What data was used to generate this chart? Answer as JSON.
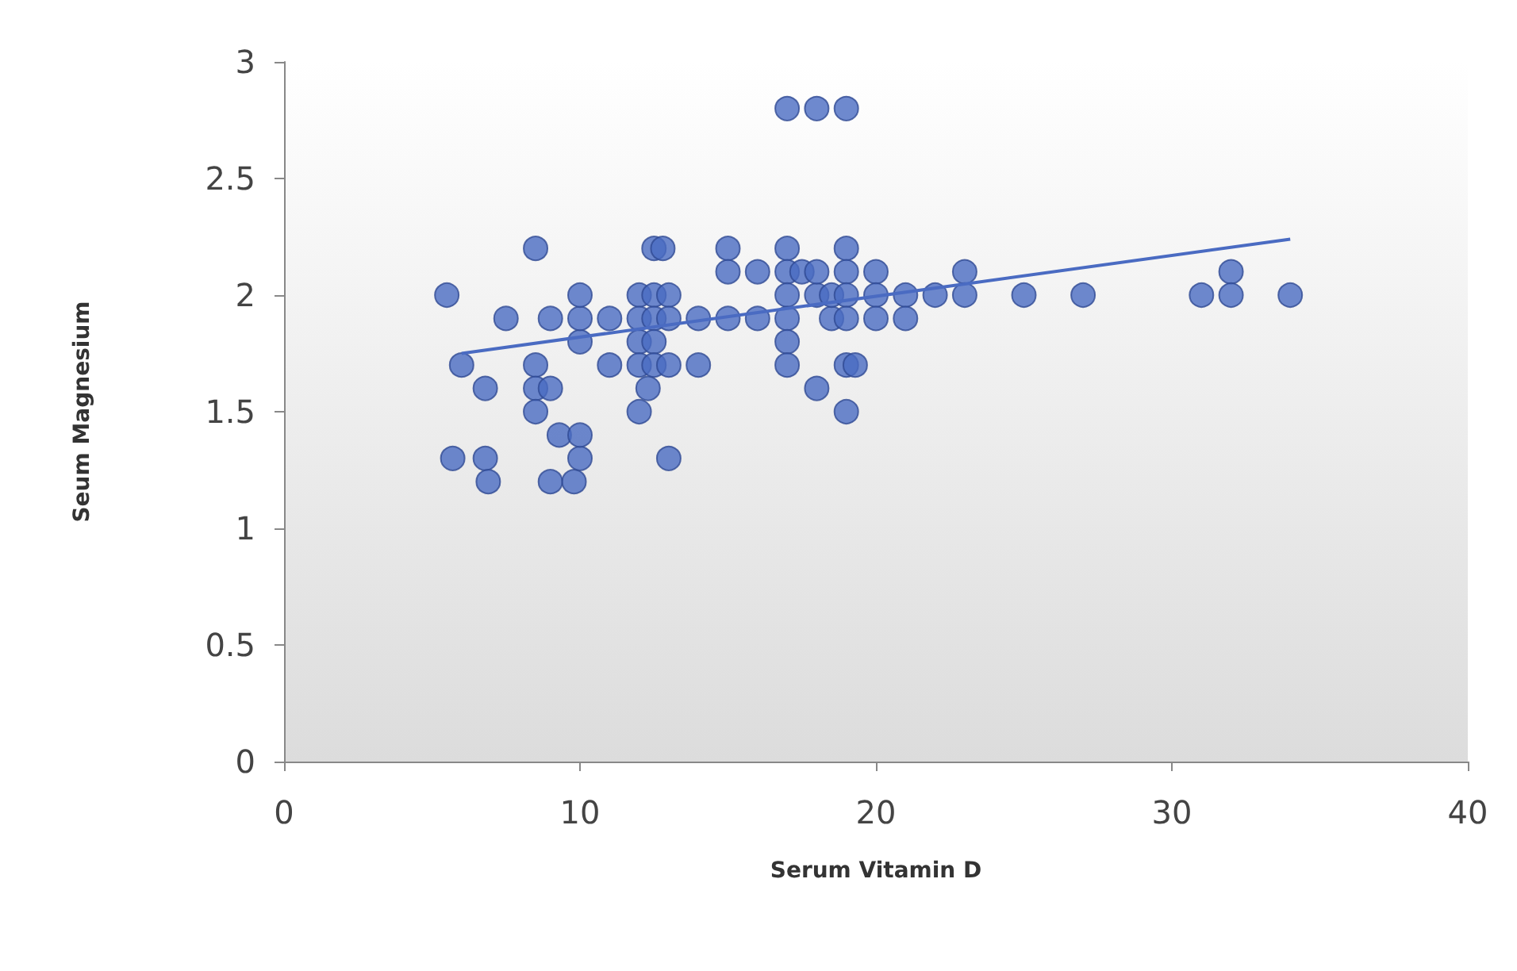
{
  "chart_data": {
    "type": "scatter",
    "xlabel": "Serum Vitamin D",
    "ylabel": "Seum Magnesium",
    "xlim": [
      0,
      40
    ],
    "xticks": [
      0,
      10,
      20,
      30,
      40
    ],
    "ylim": [
      0,
      3
    ],
    "yticks": [
      0,
      0.5,
      1,
      1.5,
      2,
      2.5,
      3
    ],
    "grid": false,
    "series": [
      {
        "color": "#4a6bc2",
        "marker": "circle",
        "x": [
          5.5,
          5.7,
          6,
          6.8,
          6.9,
          6.8,
          7.5,
          8.5,
          8.5,
          8.5,
          8.5,
          9,
          9,
          9.3,
          9,
          9.8,
          10,
          10,
          10,
          10,
          10,
          11,
          11,
          12,
          12,
          12,
          12,
          12,
          12.3,
          12.5,
          12.8,
          12.5,
          12.5,
          12.5,
          12.5,
          13,
          13,
          13,
          13,
          14,
          14,
          15,
          15,
          15,
          16,
          16,
          17,
          18,
          19,
          17,
          17,
          17,
          17,
          17,
          17,
          17.5,
          18,
          18,
          18,
          18.5,
          18.5,
          19,
          19,
          19,
          19,
          19,
          19.3,
          19,
          20,
          20,
          20,
          21,
          21,
          22,
          23,
          23,
          25,
          27,
          31,
          32,
          32,
          34
        ],
        "values": [
          2.0,
          1.3,
          1.7,
          1.3,
          1.2,
          1.6,
          1.9,
          2.2,
          1.7,
          1.6,
          1.5,
          1.6,
          1.9,
          1.4,
          1.2,
          1.2,
          1.3,
          1.4,
          1.8,
          1.9,
          2.0,
          1.9,
          1.7,
          2.0,
          1.9,
          1.8,
          1.7,
          1.5,
          1.6,
          2.2,
          2.2,
          2.0,
          1.9,
          1.8,
          1.7,
          2.0,
          1.9,
          1.7,
          1.3,
          1.9,
          1.7,
          2.2,
          2.1,
          1.9,
          2.1,
          1.9,
          2.8,
          2.8,
          2.8,
          2.2,
          2.1,
          2.0,
          1.9,
          1.8,
          1.7,
          2.1,
          2.0,
          2.1,
          1.6,
          1.9,
          2.0,
          2.2,
          2.1,
          2.0,
          1.9,
          1.7,
          1.7,
          1.5,
          2.1,
          2.0,
          1.9,
          2.0,
          1.9,
          2.0,
          2.1,
          2.0,
          2.0,
          2.0,
          2.0,
          2.1,
          2.0,
          2.0
        ]
      },
      {
        "type": "line",
        "marker": "none",
        "color": "#4a6bc2",
        "x": [
          6,
          34
        ],
        "values": [
          1.75,
          2.24
        ]
      }
    ]
  }
}
